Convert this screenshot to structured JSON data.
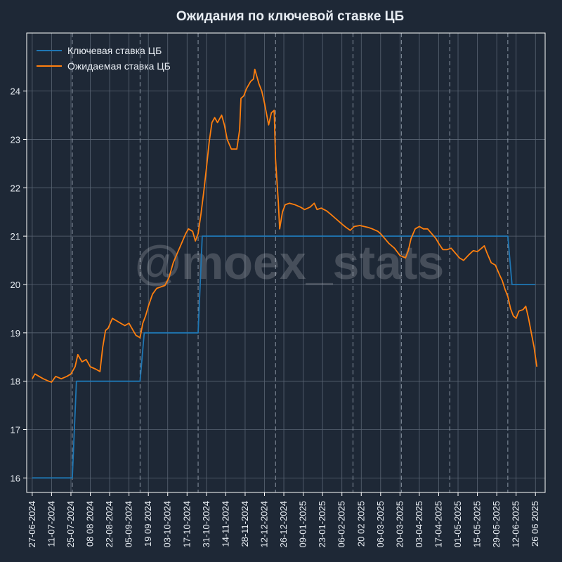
{
  "chart_data": {
    "type": "line",
    "title": "Ожидания по ключевой ставке ЦБ",
    "xlabel": "",
    "ylabel": "",
    "ylim": [
      15.7,
      25.2
    ],
    "yticks": [
      16,
      17,
      18,
      19,
      20,
      21,
      22,
      23,
      24
    ],
    "x_tick_labels": [
      "27-06-2024",
      "11-07-2024",
      "25-07-2024",
      "08 08 2024",
      "22-08-2024",
      "05-09-2024",
      "19 09 2024",
      "03-10-2024",
      "17-10-2024",
      "31-10-2024",
      "14-11-2024",
      "28-11-2024",
      "12-12-2024",
      "26-12-2024",
      "09-01-2025",
      "23-01-2025",
      "06-02-2025",
      "20 02 2025",
      "06-03-2025",
      "20-03-2025",
      "03-04-2025",
      "17-04-2025",
      "01-05-2025",
      "15-05-2025",
      "29-05-2025",
      "12-06-2025",
      "26 06 2025"
    ],
    "x_tick_dates": [
      "2024-06-27",
      "2024-07-11",
      "2024-07-25",
      "2024-08-08",
      "2024-08-22",
      "2024-09-05",
      "2024-09-19",
      "2024-10-03",
      "2024-10-17",
      "2024-10-31",
      "2024-11-14",
      "2024-11-28",
      "2024-12-12",
      "2024-12-26",
      "2025-01-09",
      "2025-01-23",
      "2025-02-06",
      "2025-02-20",
      "2025-03-06",
      "2025-03-20",
      "2025-04-03",
      "2025-04-17",
      "2025-05-01",
      "2025-05-15",
      "2025-05-29",
      "2025-06-12",
      "2025-06-26"
    ],
    "xlim": [
      "2024-06-23",
      "2025-07-03"
    ],
    "decision_dates": [
      "2024-07-26",
      "2024-09-13",
      "2024-10-25",
      "2024-12-20",
      "2025-02-14",
      "2025-03-21",
      "2025-04-25",
      "2025-06-06"
    ],
    "grid": true,
    "legend_position": "top-left",
    "series": [
      {
        "name": "Ключевая ставка ЦБ",
        "color": "#1f77b4",
        "points": [
          [
            "2024-06-27",
            16
          ],
          [
            "2024-07-26",
            16
          ],
          [
            "2024-07-29",
            18
          ],
          [
            "2024-09-13",
            18
          ],
          [
            "2024-09-16",
            19
          ],
          [
            "2024-10-25",
            19
          ],
          [
            "2024-10-28",
            21
          ],
          [
            "2025-06-06",
            21
          ],
          [
            "2025-06-09",
            20
          ],
          [
            "2025-06-26",
            20
          ]
        ]
      },
      {
        "name": "Ожидаемая ставка ЦБ",
        "color": "#ff7f0e",
        "points": [
          [
            "2024-06-27",
            18.05
          ],
          [
            "2024-06-29",
            18.15
          ],
          [
            "2024-07-02",
            18.1
          ],
          [
            "2024-07-05",
            18.05
          ],
          [
            "2024-07-09",
            18.0
          ],
          [
            "2024-07-11",
            17.98
          ],
          [
            "2024-07-14",
            18.1
          ],
          [
            "2024-07-18",
            18.05
          ],
          [
            "2024-07-22",
            18.1
          ],
          [
            "2024-07-25",
            18.15
          ],
          [
            "2024-07-28",
            18.3
          ],
          [
            "2024-07-30",
            18.55
          ],
          [
            "2024-08-02",
            18.4
          ],
          [
            "2024-08-05",
            18.45
          ],
          [
            "2024-08-08",
            18.3
          ],
          [
            "2024-08-12",
            18.25
          ],
          [
            "2024-08-15",
            18.2
          ],
          [
            "2024-08-17",
            18.7
          ],
          [
            "2024-08-19",
            19.05
          ],
          [
            "2024-08-21",
            19.1
          ],
          [
            "2024-08-24",
            19.3
          ],
          [
            "2024-08-27",
            19.25
          ],
          [
            "2024-08-30",
            19.2
          ],
          [
            "2024-09-02",
            19.15
          ],
          [
            "2024-09-05",
            19.2
          ],
          [
            "2024-09-08",
            19.05
          ],
          [
            "2024-09-10",
            18.95
          ],
          [
            "2024-09-13",
            18.9
          ],
          [
            "2024-09-15",
            19.2
          ],
          [
            "2024-09-17",
            19.35
          ],
          [
            "2024-09-19",
            19.55
          ],
          [
            "2024-09-22",
            19.8
          ],
          [
            "2024-09-25",
            19.92
          ],
          [
            "2024-09-28",
            19.95
          ],
          [
            "2024-10-01",
            19.98
          ],
          [
            "2024-10-04",
            20.15
          ],
          [
            "2024-10-07",
            20.45
          ],
          [
            "2024-10-10",
            20.65
          ],
          [
            "2024-10-13",
            20.85
          ],
          [
            "2024-10-16",
            21.05
          ],
          [
            "2024-10-18",
            21.15
          ],
          [
            "2024-10-21",
            21.1
          ],
          [
            "2024-10-23",
            20.9
          ],
          [
            "2024-10-25",
            21.05
          ],
          [
            "2024-10-27",
            21.45
          ],
          [
            "2024-10-29",
            21.9
          ],
          [
            "2024-10-31",
            22.4
          ],
          [
            "2024-11-02",
            22.95
          ],
          [
            "2024-11-04",
            23.35
          ],
          [
            "2024-11-06",
            23.45
          ],
          [
            "2024-11-08",
            23.35
          ],
          [
            "2024-11-11",
            23.5
          ],
          [
            "2024-11-13",
            23.3
          ],
          [
            "2024-11-15",
            23.0
          ],
          [
            "2024-11-18",
            22.8
          ],
          [
            "2024-11-20",
            22.8
          ],
          [
            "2024-11-22",
            22.8
          ],
          [
            "2024-11-24",
            23.2
          ],
          [
            "2024-11-25",
            23.85
          ],
          [
            "2024-11-27",
            23.9
          ],
          [
            "2024-11-29",
            24.05
          ],
          [
            "2024-12-02",
            24.2
          ],
          [
            "2024-12-04",
            24.25
          ],
          [
            "2024-12-05",
            24.45
          ],
          [
            "2024-12-08",
            24.15
          ],
          [
            "2024-12-10",
            24.0
          ],
          [
            "2024-12-12",
            23.75
          ],
          [
            "2024-12-15",
            23.3
          ],
          [
            "2024-12-17",
            23.55
          ],
          [
            "2024-12-19",
            23.6
          ],
          [
            "2024-12-20",
            22.6
          ],
          [
            "2024-12-22",
            21.7
          ],
          [
            "2024-12-23",
            21.15
          ],
          [
            "2024-12-25",
            21.5
          ],
          [
            "2024-12-27",
            21.65
          ],
          [
            "2024-12-30",
            21.68
          ],
          [
            "2025-01-03",
            21.65
          ],
          [
            "2025-01-07",
            21.6
          ],
          [
            "2025-01-10",
            21.55
          ],
          [
            "2025-01-14",
            21.6
          ],
          [
            "2025-01-17",
            21.68
          ],
          [
            "2025-01-19",
            21.55
          ],
          [
            "2025-01-22",
            21.58
          ],
          [
            "2025-01-26",
            21.52
          ],
          [
            "2025-01-29",
            21.45
          ],
          [
            "2025-02-02",
            21.35
          ],
          [
            "2025-02-06",
            21.25
          ],
          [
            "2025-02-09",
            21.18
          ],
          [
            "2025-02-12",
            21.12
          ],
          [
            "2025-02-15",
            21.2
          ],
          [
            "2025-02-19",
            21.22
          ],
          [
            "2025-02-22",
            21.2
          ],
          [
            "2025-02-25",
            21.18
          ],
          [
            "2025-02-28",
            21.15
          ],
          [
            "2025-03-04",
            21.1
          ],
          [
            "2025-03-06",
            21.05
          ],
          [
            "2025-03-09",
            20.95
          ],
          [
            "2025-03-12",
            20.85
          ],
          [
            "2025-03-16",
            20.75
          ],
          [
            "2025-03-20",
            20.6
          ],
          [
            "2025-03-24",
            20.55
          ],
          [
            "2025-03-26",
            20.7
          ],
          [
            "2025-03-28",
            20.95
          ],
          [
            "2025-03-31",
            21.15
          ],
          [
            "2025-04-03",
            21.2
          ],
          [
            "2025-04-06",
            21.15
          ],
          [
            "2025-04-09",
            21.15
          ],
          [
            "2025-04-12",
            21.05
          ],
          [
            "2025-04-15",
            20.95
          ],
          [
            "2025-04-17",
            20.85
          ],
          [
            "2025-04-20",
            20.72
          ],
          [
            "2025-04-23",
            20.72
          ],
          [
            "2025-04-26",
            20.75
          ],
          [
            "2025-04-29",
            20.65
          ],
          [
            "2025-05-02",
            20.55
          ],
          [
            "2025-05-05",
            20.5
          ],
          [
            "2025-05-09",
            20.62
          ],
          [
            "2025-05-12",
            20.7
          ],
          [
            "2025-05-15",
            20.68
          ],
          [
            "2025-05-18",
            20.75
          ],
          [
            "2025-05-20",
            20.8
          ],
          [
            "2025-05-22",
            20.65
          ],
          [
            "2025-05-25",
            20.45
          ],
          [
            "2025-05-28",
            20.4
          ],
          [
            "2025-05-31",
            20.2
          ],
          [
            "2025-06-02",
            20.08
          ],
          [
            "2025-06-04",
            19.9
          ],
          [
            "2025-06-06",
            19.75
          ],
          [
            "2025-06-08",
            19.5
          ],
          [
            "2025-06-10",
            19.35
          ],
          [
            "2025-06-12",
            19.3
          ],
          [
            "2025-06-14",
            19.45
          ],
          [
            "2025-06-17",
            19.48
          ],
          [
            "2025-06-19",
            19.55
          ],
          [
            "2025-06-21",
            19.3
          ],
          [
            "2025-06-23",
            19.0
          ],
          [
            "2025-06-25",
            18.7
          ],
          [
            "2025-06-26",
            18.5
          ],
          [
            "2025-06-27",
            18.3
          ]
        ]
      }
    ]
  },
  "watermark": "@moex_stats",
  "colors": {
    "background": "#1e2836",
    "grid": "#5a6574",
    "text": "#e8edf3"
  }
}
